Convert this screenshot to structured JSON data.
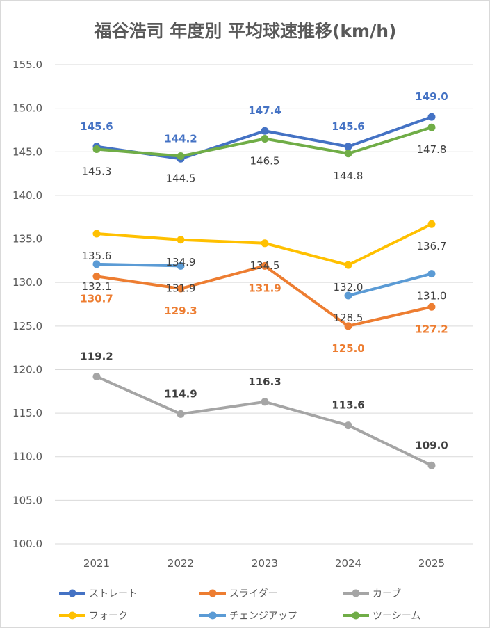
{
  "chart_data": {
    "type": "line",
    "title": "福谷浩司 年度別 平均球速推移(km/h)",
    "xlabel": "",
    "ylabel": "",
    "categories": [
      "2021",
      "2022",
      "2023",
      "2024",
      "2025"
    ],
    "ylim": [
      100,
      155
    ],
    "ytick_step": 5,
    "ytick_labels": [
      "100.0",
      "105.0",
      "110.0",
      "115.0",
      "120.0",
      "125.0",
      "130.0",
      "135.0",
      "140.0",
      "145.0",
      "150.0",
      "155.0"
    ],
    "grid": true,
    "legend_position": "bottom",
    "series": [
      {
        "name": "ストレート",
        "color": "#4472c4",
        "values": [
          145.6,
          144.2,
          147.4,
          145.6,
          149.0
        ],
        "labels": [
          "145.6",
          "144.2",
          "147.4",
          "145.6",
          "149.0"
        ],
        "label_color": "#4472c4",
        "label_bold": true,
        "label_pos": "above"
      },
      {
        "name": "スライダー",
        "color": "#ed7d31",
        "values": [
          130.7,
          129.3,
          131.9,
          125.0,
          127.2
        ],
        "labels": [
          "130.7",
          "129.3",
          "131.9",
          "125.0",
          "127.2"
        ],
        "label_color": "#ed7d31",
        "label_bold": true,
        "label_pos": "below"
      },
      {
        "name": "カーブ",
        "color": "#a5a5a5",
        "values": [
          119.2,
          114.9,
          116.3,
          113.6,
          109.0
        ],
        "labels": [
          "119.2",
          "114.9",
          "116.3",
          "113.6",
          "109.0"
        ],
        "label_color": "#404040",
        "label_bold": true,
        "label_pos": "above"
      },
      {
        "name": "フォーク",
        "color": "#ffc000",
        "values": [
          135.6,
          134.9,
          134.5,
          132.0,
          136.7
        ],
        "labels": [
          "135.6",
          "134.9",
          "134.5",
          "132.0",
          "136.7"
        ],
        "label_color": "#404040",
        "label_bold": false,
        "label_pos": "below"
      },
      {
        "name": "チェンジアップ",
        "color": "#5b9bd5",
        "values": [
          132.1,
          131.9,
          null,
          128.5,
          131.0
        ],
        "labels": [
          "132.1",
          "131.9",
          "",
          "128.5",
          "131.0"
        ],
        "label_color": "#404040",
        "label_bold": false,
        "label_pos": "below"
      },
      {
        "name": "ツーシーム",
        "color": "#70ad47",
        "values": [
          145.3,
          144.5,
          146.5,
          144.8,
          147.8
        ],
        "labels": [
          "145.3",
          "144.5",
          "146.5",
          "144.8",
          "147.8"
        ],
        "label_color": "#404040",
        "label_bold": false,
        "label_pos": "below"
      }
    ]
  }
}
